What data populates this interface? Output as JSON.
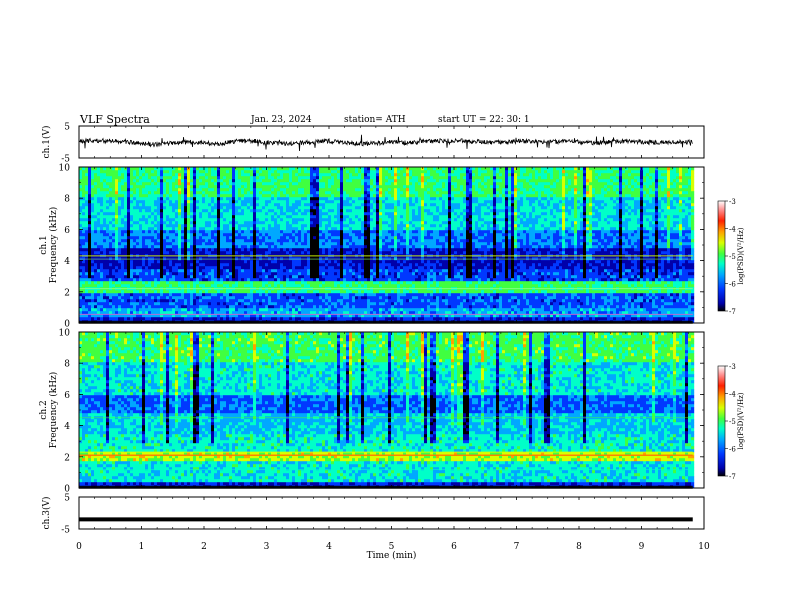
{
  "header": {
    "title": "VLF  Spectra",
    "date": "Jan.  23,  2024",
    "station": "station= ATH",
    "start": "start  UT  =    22: 30: 1"
  },
  "chart_data": [
    {
      "type": "line",
      "panel": "ch1-waveform",
      "ylabel": "ch.1(V)",
      "ylim": [
        -5,
        5
      ],
      "yticks": [
        "5",
        "-5"
      ],
      "x_unit": "min",
      "xlim": [
        0,
        10
      ],
      "data_extent_min": 9.82,
      "series": [
        {
          "x": [
            0,
            0.25,
            0.5,
            0.75,
            1.0,
            1.25,
            1.5,
            1.75,
            2.0,
            2.25,
            2.5,
            2.75,
            3.0,
            3.25,
            3.5,
            3.75,
            4.0,
            4.25,
            4.5,
            4.75,
            5.0,
            5.25,
            5.5,
            5.75,
            6.0,
            6.25,
            6.5,
            6.75,
            7.0,
            7.25,
            7.5,
            7.75,
            8.0,
            8.25,
            8.5,
            8.75,
            9.0,
            9.25,
            9.5,
            9.82
          ],
          "y": [
            0.2,
            0.5,
            0.3,
            0.1,
            -0.6,
            -0.8,
            -0.4,
            0.0,
            -0.3,
            -0.5,
            0.2,
            0.4,
            -0.1,
            -0.5,
            -0.3,
            0.0,
            0.3,
            -0.2,
            -0.6,
            -0.4,
            0.1,
            -0.3,
            0.2,
            0.4,
            0.5,
            0.2,
            0.0,
            -0.2,
            0.3,
            0.1,
            -0.1,
            0.2,
            0.0,
            -0.3,
            0.1,
            0.2,
            0.0,
            -0.2,
            0.1,
            -0.1
          ]
        }
      ]
    },
    {
      "type": "heatmap",
      "panel": "ch1-spectrogram",
      "ylabel": "ch.1\nFrequency  (kHz)",
      "ylim": [
        0,
        10
      ],
      "yticks": [
        "0",
        "2",
        "4",
        "6",
        "8",
        "10"
      ],
      "xlim": [
        0,
        10
      ],
      "colorbar": {
        "label": "log(PSD)(V²/Hz)",
        "range": [
          -7,
          -3
        ],
        "ticks": [
          "-3",
          "-4",
          "-5",
          "-6",
          "-7"
        ]
      }
    },
    {
      "type": "heatmap",
      "panel": "ch2-spectrogram",
      "ylabel": "ch.2\nFrequency  (kHz)",
      "ylim": [
        0,
        10
      ],
      "yticks": [
        "0",
        "2",
        "4",
        "6",
        "8",
        "10"
      ],
      "xlim": [
        0,
        10
      ],
      "colorbar": {
        "label": "log(PSD)(V²/Hz)",
        "range": [
          -7,
          -3
        ],
        "ticks": [
          "-3",
          "-4",
          "-5",
          "-6",
          "-7"
        ]
      }
    },
    {
      "type": "line",
      "panel": "ch3-waveform",
      "ylabel": "ch.3(V)",
      "ylim": [
        -5,
        5
      ],
      "yticks": [
        "5",
        "-5"
      ],
      "xlim": [
        0,
        10
      ],
      "series": [
        {
          "x": [
            0,
            9.82
          ],
          "y": [
            -2.0,
            -2.0
          ]
        }
      ]
    }
  ],
  "xaxis": {
    "label": "Time  (min)",
    "ticks": [
      "0",
      "1",
      "2",
      "3",
      "4",
      "5",
      "6",
      "7",
      "8",
      "9",
      "10"
    ]
  },
  "colors": {
    "trace": "#000000",
    "colormap": [
      "#000000",
      "#0000aa",
      "#0038ff",
      "#00a8ff",
      "#00ffc8",
      "#40ff40",
      "#d8ff00",
      "#ffa000",
      "#ff2000",
      "#ff9090",
      "#ffffff"
    ]
  }
}
